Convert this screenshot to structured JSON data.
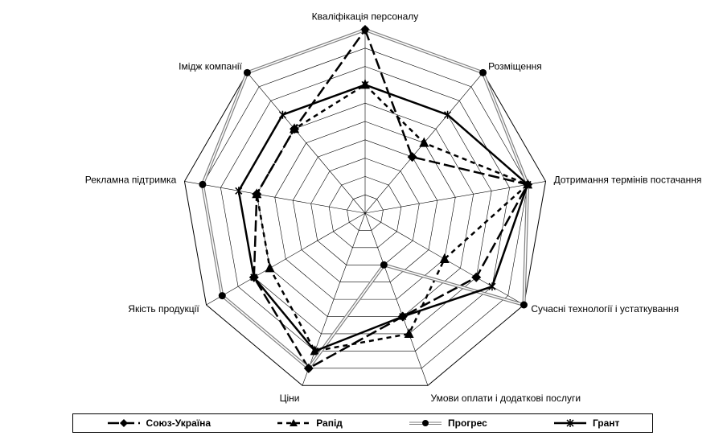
{
  "chart_data": {
    "type": "radar",
    "axes": [
      "Кваліфікація персоналу",
      "Розміщення",
      "Дотримання термінів постачання",
      "Сучасні технології і устаткування",
      "Умови оплати і додаткові послуги",
      "Ціни",
      "Якість продукції",
      "Рекламна підтримка",
      "Імідж компанії"
    ],
    "range": [
      0,
      10
    ],
    "rings": 10,
    "grid": true,
    "legend_position": "bottom",
    "series": [
      {
        "name": "Союз-Україна",
        "values": [
          10,
          4,
          9,
          7,
          6,
          9,
          7,
          6,
          6
        ],
        "color": "#000000",
        "dash": "long-dash",
        "marker": "diamond"
      },
      {
        "name": "Рапід",
        "values": [
          7,
          5,
          9,
          5,
          7,
          8,
          6,
          6,
          6
        ],
        "color": "#000000",
        "dash": "dash",
        "marker": "triangle"
      },
      {
        "name": "Прогрес",
        "values": [
          10,
          10,
          9,
          10,
          3,
          9,
          9,
          9,
          10
        ],
        "color": "#808080",
        "dash": "double",
        "marker": "circle"
      },
      {
        "name": "Грант",
        "values": [
          7,
          7,
          9,
          8,
          6,
          8,
          7,
          7,
          7
        ],
        "color": "#000000",
        "dash": "solid",
        "marker": "star"
      }
    ]
  }
}
